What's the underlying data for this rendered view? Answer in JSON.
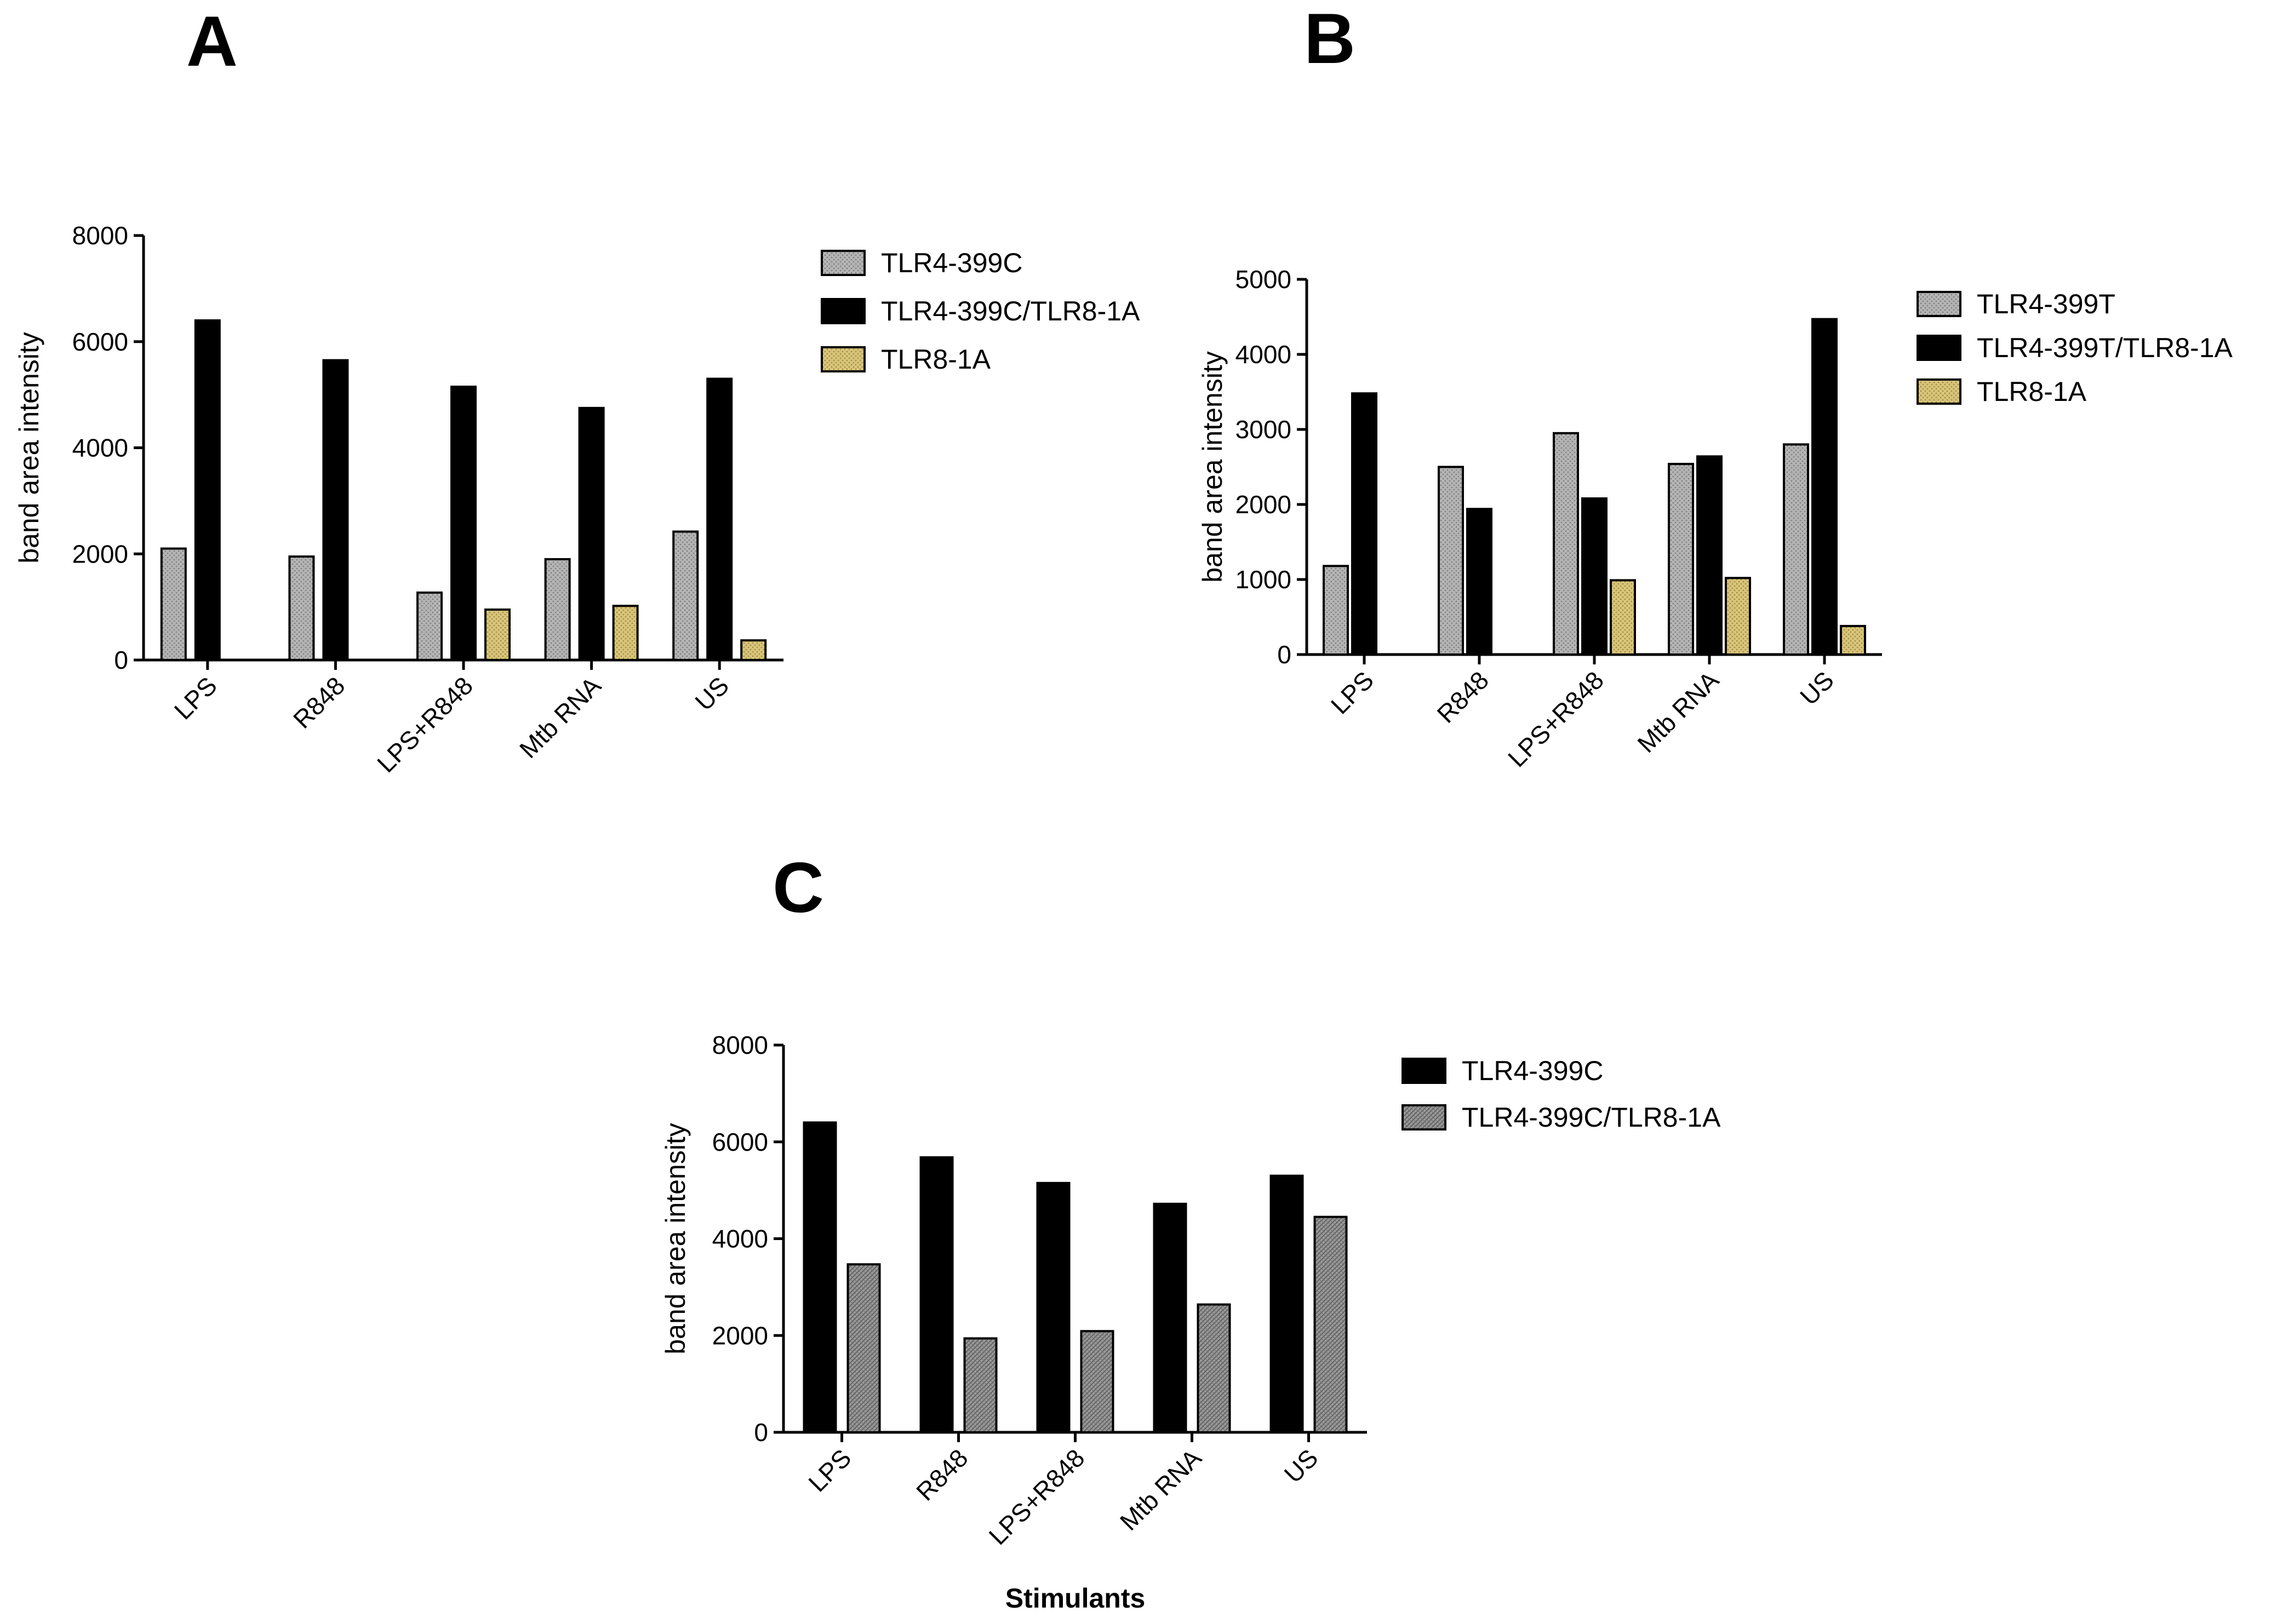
{
  "colors": {
    "gray_fill": "#a9a9a9",
    "black_fill": "#000000",
    "gold_fill": "#cbb66a",
    "hatch_fill": "#8c8c8c",
    "axis": "#000000"
  },
  "chart_data": [
    {
      "panel": "A",
      "type": "bar",
      "categories": [
        "LPS",
        "R848",
        "LPS+R848",
        "Mtb RNA",
        "US"
      ],
      "ylabel": "band area intensity",
      "xlabel": "",
      "ylim": [
        0,
        8000
      ],
      "yticks": [
        0,
        2000,
        4000,
        6000,
        8000
      ],
      "series": [
        {
          "name": "TLR4-399C",
          "style": "gray",
          "values": [
            2100,
            1950,
            1270,
            1900,
            2420
          ]
        },
        {
          "name": "TLR4-399C/TLR8-1A",
          "style": "black",
          "values": [
            6400,
            5650,
            5150,
            4750,
            5300
          ]
        },
        {
          "name": "TLR8-1A",
          "style": "gold",
          "values": [
            null,
            null,
            950,
            1020,
            370
          ]
        }
      ]
    },
    {
      "panel": "B",
      "type": "bar",
      "categories": [
        "LPS",
        "R848",
        "LPS+R848",
        "Mtb RNA",
        "US"
      ],
      "ylabel": "band area intensity",
      "xlabel": "",
      "ylim": [
        0,
        5000
      ],
      "yticks": [
        0,
        1000,
        2000,
        3000,
        4000,
        5000
      ],
      "series": [
        {
          "name": "TLR4-399T",
          "style": "gray",
          "values": [
            1180,
            2500,
            2950,
            2540,
            2800
          ]
        },
        {
          "name": "TLR4-399T/TLR8-1A",
          "style": "black",
          "values": [
            3480,
            1940,
            2080,
            2640,
            4470
          ]
        },
        {
          "name": "TLR8-1A",
          "style": "gold",
          "values": [
            null,
            null,
            990,
            1020,
            380
          ]
        }
      ]
    },
    {
      "panel": "C",
      "type": "bar",
      "categories": [
        "LPS",
        "R848",
        "LPS+R848",
        "Mtb RNA",
        "US"
      ],
      "ylabel": "band area intensity",
      "xlabel": "Stimulants",
      "ylim": [
        0,
        8000
      ],
      "yticks": [
        0,
        2000,
        4000,
        6000,
        8000
      ],
      "series": [
        {
          "name": "TLR4-399C",
          "style": "black",
          "values": [
            6400,
            5680,
            5150,
            4720,
            5300
          ]
        },
        {
          "name": "TLR4-399C/TLR8-1A",
          "style": "hatch",
          "values": [
            3470,
            1940,
            2090,
            2640,
            4450
          ]
        }
      ]
    }
  ]
}
